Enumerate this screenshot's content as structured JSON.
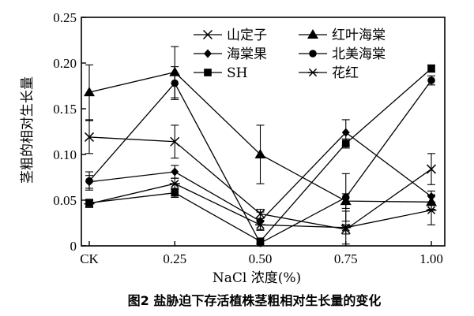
{
  "caption": "图2 盐胁迫下存活植株茎粗相对生长量的变化",
  "chart_data": {
    "type": "line",
    "xlabel": "NaCl 浓度(%)",
    "ylabel": "茎粗的相对生长量",
    "categories": [
      "CK",
      "0.25",
      "0.50",
      "0.75",
      "1.00"
    ],
    "ylim": [
      0,
      0.25
    ],
    "yticks": [
      "0",
      "0.05",
      "0.10",
      "0.15",
      "0.20",
      "0.25"
    ],
    "legend_position": "top-right",
    "series": [
      {
        "name": "山定子",
        "marker": "x",
        "values": [
          0.119,
          0.114,
          0.035,
          0.018,
          0.084
        ],
        "errors": [
          0.018,
          0.018,
          0.005,
          0.005,
          0.017
        ]
      },
      {
        "name": "红叶海棠",
        "marker": "triangle",
        "values": [
          0.168,
          0.19,
          0.1,
          0.049,
          0.048
        ],
        "errors": [
          0.03,
          0.028,
          0.032,
          0.008,
          0.008
        ]
      },
      {
        "name": "海棠果",
        "marker": "diamond",
        "values": [
          0.07,
          0.081,
          0.027,
          0.124,
          0.054
        ],
        "errors": [
          0.007,
          0.007,
          0.01,
          0.014,
          0.006
        ]
      },
      {
        "name": "北美海棠",
        "marker": "circle",
        "values": [
          0.071,
          0.178,
          0.003,
          0.053,
          0.181
        ],
        "errors": [
          0.01,
          0.018,
          0.003,
          0.026,
          0.005
        ]
      },
      {
        "name": "SH",
        "marker": "square",
        "values": [
          0.047,
          0.058,
          0.005,
          0.112,
          0.194
        ],
        "errors": [
          0.004,
          0.005,
          0.003,
          0.005,
          0.004
        ]
      },
      {
        "name": "花红",
        "marker": "asterisk",
        "values": [
          0.046,
          0.068,
          0.023,
          0.02,
          0.039
        ],
        "errors": [
          0.004,
          0.006,
          0.005,
          0.018,
          0.016
        ]
      }
    ]
  }
}
